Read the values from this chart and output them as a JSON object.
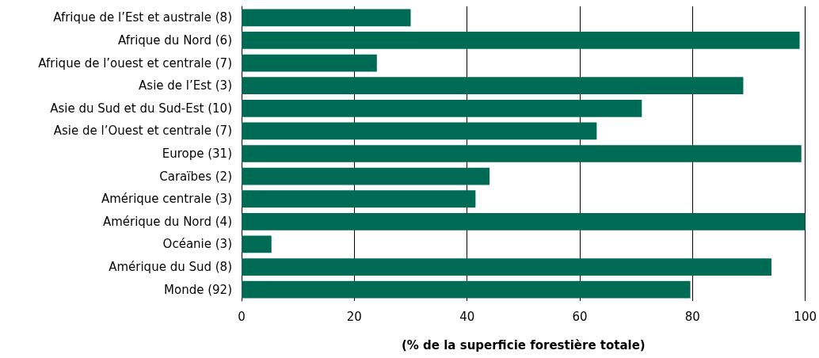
{
  "chart_data": {
    "type": "bar",
    "orientation": "horizontal",
    "xlabel": "(% de la superficie forestière totale)",
    "categories": [
      "Afrique de l’Est et australe (8)",
      "Afrique du Nord (6)",
      "Afrique de l’ouest et centrale (7)",
      "Asie de l’Est (3)",
      "Asie du Sud et du Sud-Est (10)",
      "Asie de l’Ouest et centrale (7)",
      "Europe (31)",
      "Caraïbes (2)",
      "Amérique centrale (3)",
      "Amérique du Nord (4)",
      "Océanie (3)",
      "Amérique du Sud (8)",
      "Monde (92)"
    ],
    "values": [
      30,
      99,
      24,
      89,
      71,
      63,
      99.3,
      44,
      41.5,
      100,
      5.3,
      94,
      79.6
    ],
    "color": "#006b54",
    "xlim": [
      0,
      100
    ],
    "xticks": [
      0,
      20,
      40,
      60,
      80,
      100
    ],
    "grid": "x"
  }
}
